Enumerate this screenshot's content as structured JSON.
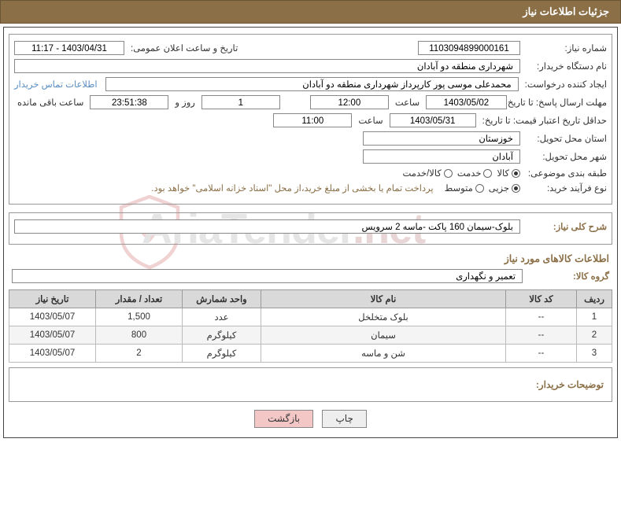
{
  "header": {
    "title": "جزئیات اطلاعات نیاز"
  },
  "fields": {
    "need_number_label": "شماره نیاز:",
    "need_number": "1103094899000161",
    "announce_label": "تاریخ و ساعت اعلان عمومی:",
    "announce_value": "1403/04/31 - 11:17",
    "buyer_org_label": "نام دستگاه خریدار:",
    "buyer_org": "شهرداری منطقه دو آبادان",
    "requester_label": "ایجاد کننده درخواست:",
    "requester": "محمدعلی موسی پور کارپرداز شهرداری منطقه دو آبادان",
    "contact_link": "اطلاعات تماس خریدار",
    "deadline_label": "مهلت ارسال پاسخ: تا تاریخ:",
    "deadline_date": "1403/05/02",
    "time_label": "ساعت",
    "deadline_time": "12:00",
    "days_val": "1",
    "days_and": "روز و",
    "remain_time": "23:51:38",
    "remain_label": "ساعت باقی مانده",
    "validity_label": "حداقل تاریخ اعتبار قیمت: تا تاریخ:",
    "validity_date": "1403/05/31",
    "validity_time": "11:00",
    "province_label": "استان محل تحویل:",
    "province": "خوزستان",
    "city_label": "شهر محل تحویل:",
    "city": "آبادان",
    "class_label": "طبقه بندی موضوعی:",
    "radio_goods": "کالا",
    "radio_service": "خدمت",
    "radio_both": "کالا/خدمت",
    "process_label": "نوع فرآیند خرید:",
    "radio_small": "جزیی",
    "radio_medium": "متوسط",
    "treasury_note": "پرداخت تمام یا بخشی از مبلغ خرید،از محل \"اسناد خزانه اسلامی\" خواهد بود.",
    "desc_label": "شرح کلی نیاز:",
    "desc_value": "بلوک-سیمان 160 پاکت -ماسه 2 سرویس",
    "goods_section": "اطلاعات کالاهای مورد نیاز",
    "group_label": "گروه کالا:",
    "group_value": "تعمیر و نگهداری",
    "comment_label": "توضیحات خریدار:"
  },
  "table": {
    "columns": [
      "ردیف",
      "کد کالا",
      "نام کالا",
      "واحد شمارش",
      "تعداد / مقدار",
      "تاریخ نیاز"
    ],
    "col_widths": [
      "45px",
      "90px",
      "auto",
      "100px",
      "110px",
      "110px"
    ],
    "rows": [
      [
        "1",
        "--",
        "بلوک متخلخل",
        "عدد",
        "1,500",
        "1403/05/07"
      ],
      [
        "2",
        "--",
        "سیمان",
        "کیلوگرم",
        "800",
        "1403/05/07"
      ],
      [
        "3",
        "--",
        "شن و ماسه",
        "کیلوگرم",
        "2",
        "1403/05/07"
      ]
    ]
  },
  "buttons": {
    "print": "چاپ",
    "back": "بازگشت"
  },
  "colors": {
    "header_bg": "#8b6f47",
    "accent": "#8b6f47",
    "link": "#5a8fc4",
    "btn_back_bg": "#f4c7c7"
  }
}
